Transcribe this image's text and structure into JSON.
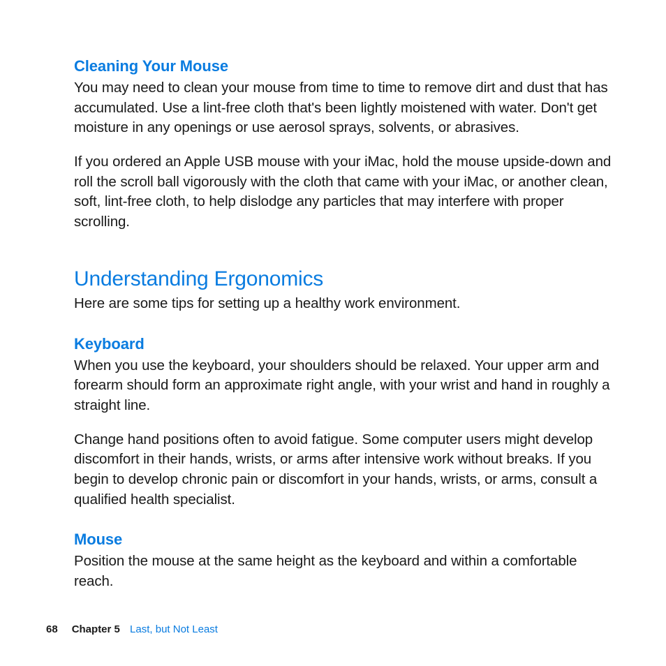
{
  "colors": {
    "heading_blue": "#0a7ce0",
    "body_text": "#1a1a1a",
    "background": "#ffffff"
  },
  "typography": {
    "h2_fontsize": 30,
    "h3_fontsize": 22,
    "body_fontsize": 20.5,
    "footer_fontsize": 15,
    "line_height": 1.4
  },
  "sections": {
    "cleaning_mouse": {
      "title": "Cleaning Your Mouse",
      "p1": "You may need to clean your mouse from time to time to remove dirt and dust that has accumulated. Use a lint-free cloth that's been lightly moistened with water. Don't get moisture in any openings or use aerosol sprays, solvents, or abrasives.",
      "p2": "If you ordered an Apple USB mouse with your iMac, hold the mouse upside-down and roll the scroll ball vigorously with the cloth that came with your iMac, or another clean, soft, lint-free cloth, to help dislodge any particles that may interfere with proper scrolling."
    },
    "ergonomics": {
      "title": "Understanding Ergonomics",
      "intro": "Here are some tips for setting up a healthy work environment."
    },
    "keyboard": {
      "title": "Keyboard",
      "p1": "When you use the keyboard, your shoulders should be relaxed. Your upper arm and forearm should form an approximate right angle, with your wrist and hand in roughly a straight line.",
      "p2": "Change hand positions often to avoid fatigue. Some computer users might develop discomfort in their hands, wrists, or arms after intensive work without breaks. If you begin to develop chronic pain or discomfort in your hands, wrists, or arms, consult a qualified health specialist."
    },
    "mouse": {
      "title": "Mouse",
      "p1": "Position the mouse at the same height as the keyboard and within a comfortable reach."
    }
  },
  "footer": {
    "page_number": "68",
    "chapter_label": "Chapter 5",
    "chapter_title": "Last, but Not Least"
  }
}
